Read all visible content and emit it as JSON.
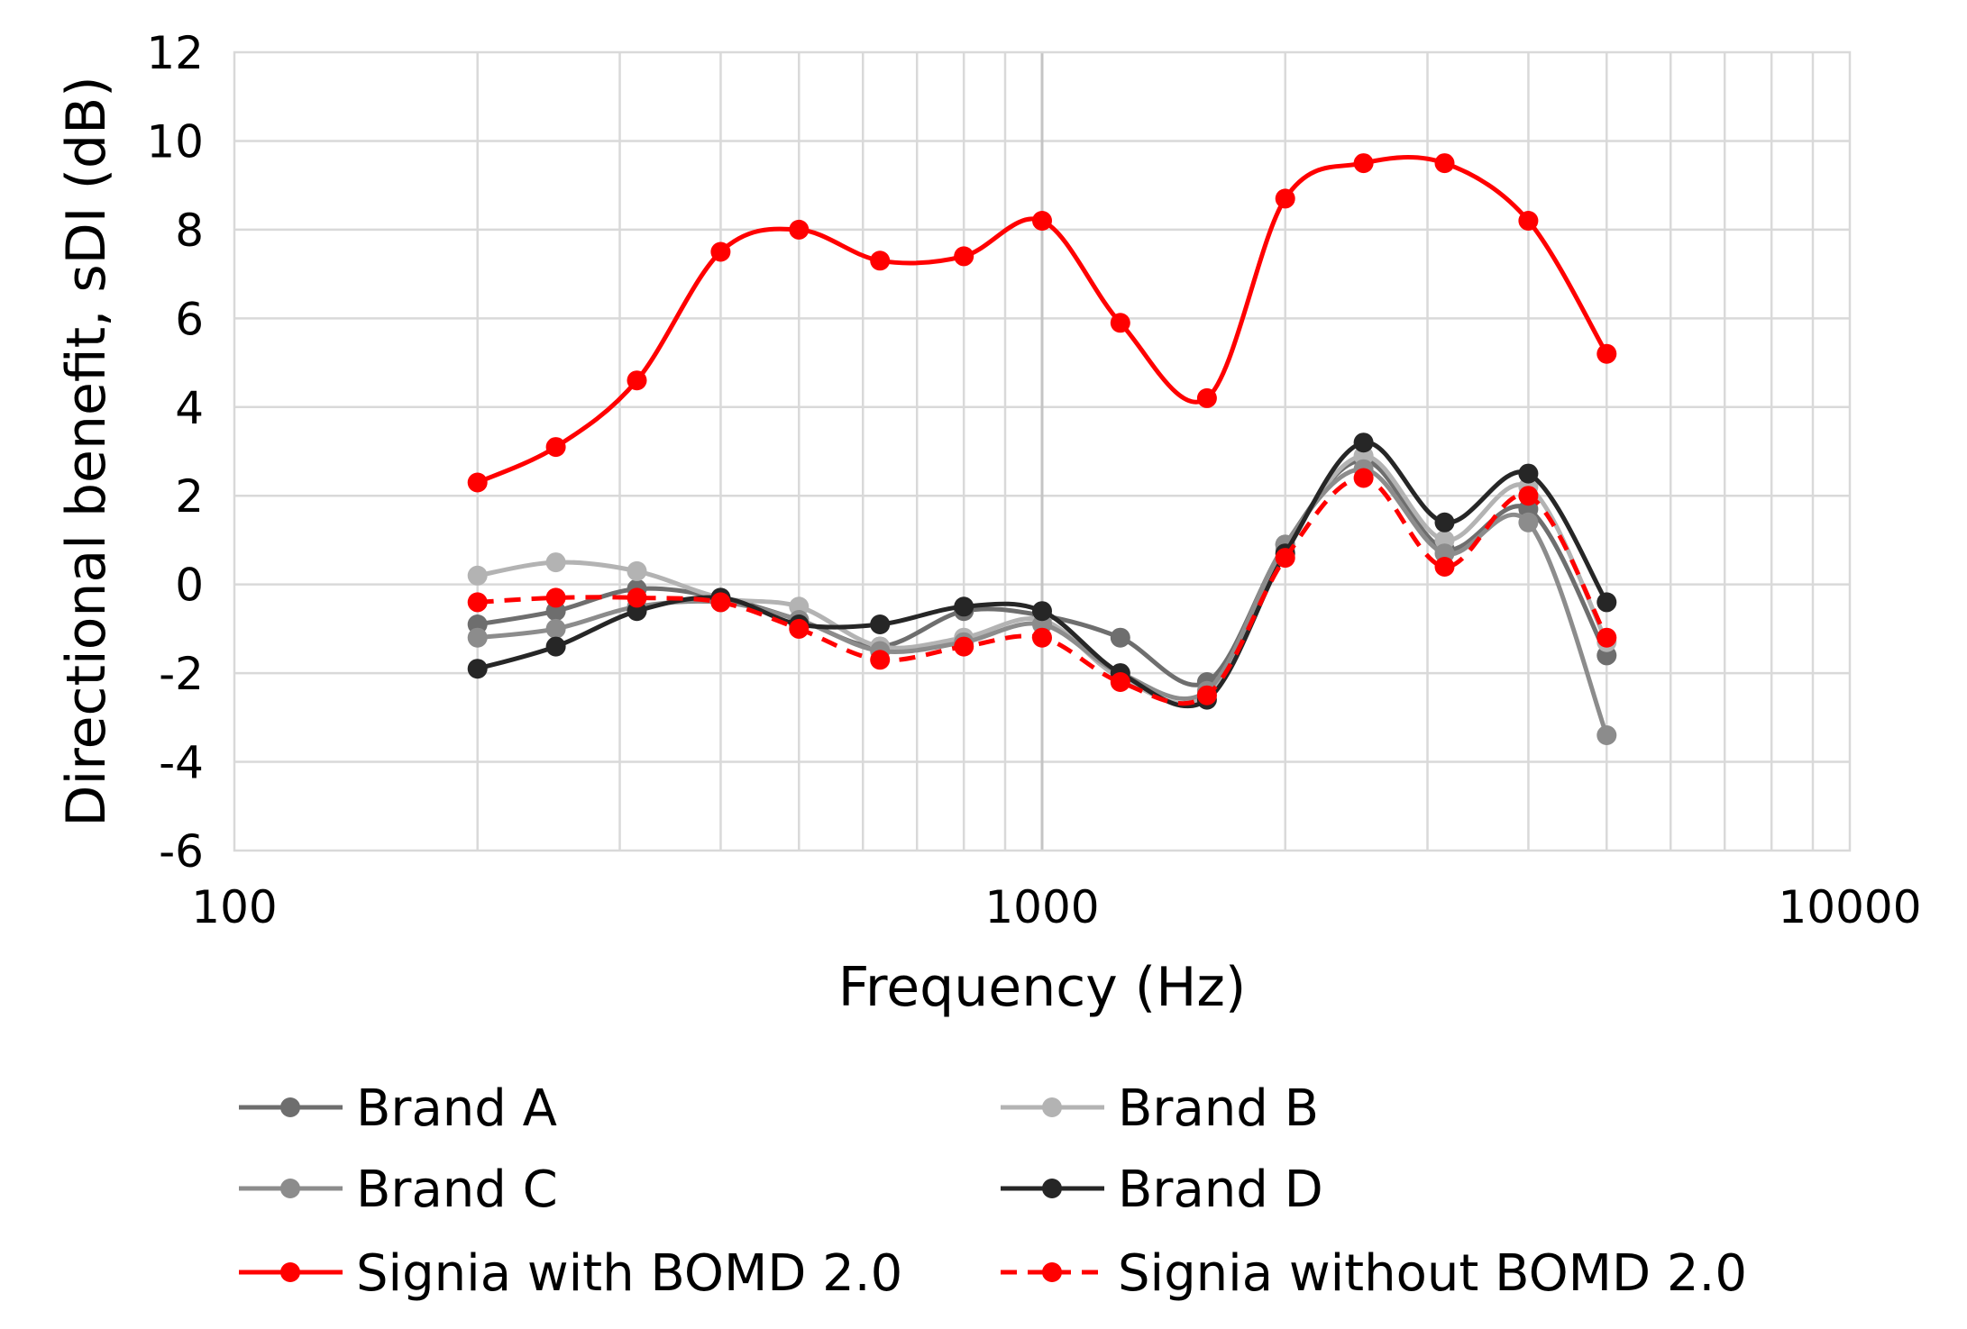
{
  "chart_data": {
    "type": "line",
    "title": "",
    "xlabel": "Frequency (Hz)",
    "ylabel": "Directional benefit, sDI (dB)",
    "xscale": "log",
    "xlim": [
      100,
      10000
    ],
    "ylim": [
      -6,
      12
    ],
    "x_ticks": [
      "100",
      "1000",
      "10000"
    ],
    "y_ticks": [
      "12",
      "10",
      "8",
      "6",
      "4",
      "2",
      "0",
      "-2",
      "-4",
      "-6"
    ],
    "grid": true,
    "legend_position": "bottom",
    "x": [
      200,
      250,
      315,
      400,
      500,
      630,
      800,
      1000,
      1250,
      1600,
      2000,
      2500,
      3150,
      4000,
      5000
    ],
    "series": [
      {
        "name": "Brand A",
        "color": "#6e6e6e",
        "dash": "solid",
        "values": [
          -0.9,
          -0.6,
          -0.1,
          -0.3,
          -0.8,
          -1.4,
          -0.6,
          -0.7,
          -1.2,
          -2.2,
          0.9,
          2.8,
          0.8,
          1.7,
          -1.6
        ]
      },
      {
        "name": "Brand B",
        "color": "#b3b3b3",
        "dash": "solid",
        "values": [
          0.2,
          0.5,
          0.3,
          -0.3,
          -0.5,
          -1.4,
          -1.2,
          -0.8,
          -2.1,
          -2.5,
          0.8,
          2.9,
          1.0,
          2.2,
          -1.3
        ]
      },
      {
        "name": "Brand C",
        "color": "#8c8c8c",
        "dash": "solid",
        "values": [
          -1.2,
          -1.0,
          -0.5,
          -0.4,
          -0.8,
          -1.5,
          -1.3,
          -0.9,
          -2.0,
          -2.4,
          0.9,
          2.6,
          0.7,
          1.4,
          -3.4
        ]
      },
      {
        "name": "Brand D",
        "color": "#262626",
        "dash": "solid",
        "values": [
          -1.9,
          -1.4,
          -0.6,
          -0.3,
          -0.9,
          -0.9,
          -0.5,
          -0.6,
          -2.0,
          -2.6,
          0.7,
          3.2,
          1.4,
          2.5,
          -0.4
        ]
      },
      {
        "name": "Signia with BOMD 2.0",
        "color": "#ff0000",
        "dash": "solid",
        "values": [
          2.3,
          3.1,
          4.6,
          7.5,
          8.0,
          7.3,
          7.4,
          8.2,
          5.9,
          4.2,
          8.7,
          9.5,
          9.5,
          8.2,
          5.2
        ]
      },
      {
        "name": "Signia without BOMD 2.0",
        "color": "#ff0000",
        "dash": "dashed",
        "values": [
          -0.4,
          -0.3,
          -0.3,
          -0.4,
          -1.0,
          -1.7,
          -1.4,
          -1.2,
          -2.2,
          -2.5,
          0.6,
          2.4,
          0.4,
          2.0,
          -1.2
        ]
      }
    ]
  }
}
